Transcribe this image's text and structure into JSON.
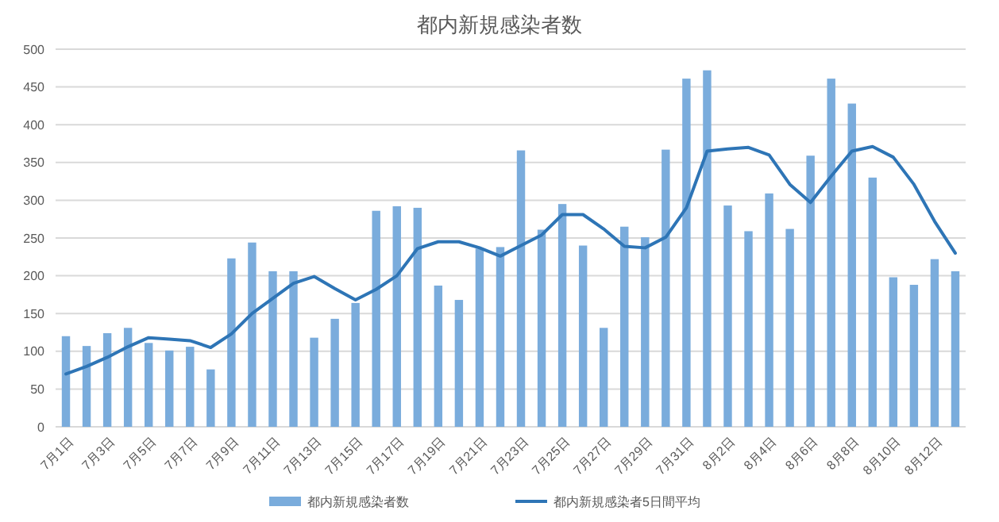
{
  "chart_data": {
    "type": "bar",
    "title": "都内新規感染者数",
    "categories": [
      "7月1日",
      null,
      "7月3日",
      null,
      "7月5日",
      null,
      "7月7日",
      null,
      "7月9日",
      null,
      "7月11日",
      null,
      "7月13日",
      null,
      "7月15日",
      null,
      "7月17日",
      null,
      "7月19日",
      null,
      "7月21日",
      null,
      "7月23日",
      null,
      "7月25日",
      null,
      "7月27日",
      null,
      "7月29日",
      null,
      "7月31日",
      null,
      "8月2日",
      null,
      "8月4日",
      null,
      "8月6日",
      null,
      "8月8日",
      null,
      "8月10日",
      null,
      "8月12日",
      null
    ],
    "series": [
      {
        "name": "都内新規感染者数",
        "color": "#7aacdc",
        "values": [
          120,
          107,
          124,
          131,
          111,
          101,
          106,
          76,
          223,
          244,
          206,
          206,
          118,
          143,
          164,
          286,
          292,
          290,
          187,
          168,
          236,
          238,
          366,
          261,
          295,
          240,
          131,
          265,
          251,
          367,
          461,
          472,
          293,
          259,
          309,
          262,
          359,
          461,
          428,
          330,
          198,
          188,
          222,
          206
        ]
      },
      {
        "name": "都内新規感染者5日間平均",
        "type": "line",
        "color": "#2e75b6",
        "values": [
          70,
          80,
          92,
          106,
          118,
          116,
          114,
          105,
          123,
          150,
          170,
          190,
          199,
          183,
          168,
          182,
          200,
          236,
          245,
          245,
          237,
          226,
          240,
          254,
          281,
          281,
          262,
          239,
          237,
          251,
          290,
          365,
          368,
          370,
          360,
          321,
          297,
          332,
          365,
          371,
          357,
          321,
          272,
          230
        ]
      }
    ],
    "ylim": [
      0,
      500
    ],
    "yticks": [
      0,
      50,
      100,
      150,
      200,
      250,
      300,
      350,
      400,
      450,
      500
    ],
    "grid": "y",
    "legend": "bottom"
  }
}
